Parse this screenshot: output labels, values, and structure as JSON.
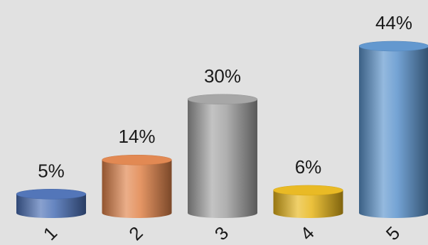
{
  "chart_data": {
    "type": "bar",
    "style": "3d-cylinder",
    "title": "",
    "xlabel": "",
    "ylabel": "",
    "categories": [
      "1",
      "2",
      "3",
      "4",
      "5"
    ],
    "values": [
      5,
      14,
      30,
      6,
      44
    ],
    "data_labels": [
      "5%",
      "14%",
      "30%",
      "6%",
      "44%"
    ],
    "ylim": [
      0,
      44
    ],
    "grid": false,
    "legend": "none",
    "colors": [
      "#4a6fb5",
      "#e0834a",
      "#a2a2a2",
      "#e8b619",
      "#5b93cc"
    ]
  }
}
